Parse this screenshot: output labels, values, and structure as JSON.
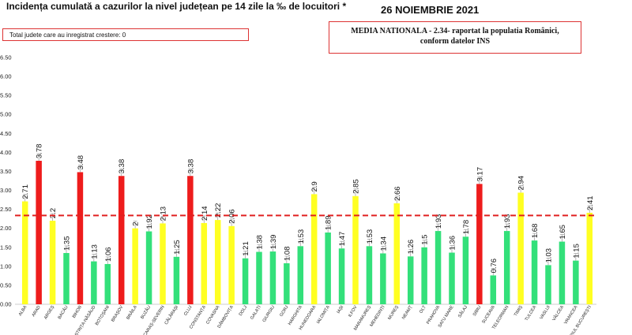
{
  "header": {
    "title": "Incidența cumulată a cazurilor la nivel județean pe 14 zile la ‰ de locuitori *",
    "date": "26 NOIEMBRIE 2021",
    "box_left": "Total judete care au inregistrat crestere: 0",
    "box_right_line1": "MEDIA NATIONALA - 2.34-  raportat la populatia Romȃnici,",
    "box_right_line2": "conform datelor INS"
  },
  "colors": {
    "red": "#ee1c1c",
    "yellow": "#ffff22",
    "green": "#33e07a",
    "reference_line": "#e02020",
    "error_bar": "#999999"
  },
  "chart_data": {
    "type": "bar",
    "categories": [
      "ALBA",
      "ARAD",
      "ARGEȘ",
      "BACĂU",
      "BIHOR",
      "BISTRIȚA-NĂSĂUD",
      "BOTOȘANI",
      "BRAȘOV",
      "BRĂILA",
      "BUZĂU",
      "CARAȘ-SEVERIN",
      "CĂLĂRAȘI",
      "CLUJ",
      "CONSTANȚA",
      "COVASNA",
      "DÂMBOVIȚA",
      "DOLJ",
      "GALAȚI",
      "GIURGIU",
      "GORJ",
      "HARGHITA",
      "HUNEDOARA",
      "IALOMIȚA",
      "IAȘI",
      "ILFOV",
      "MARAMUREȘ",
      "MEHEDINȚI",
      "MUREȘ",
      "NEAMȚ",
      "OLT",
      "PRAHOVA",
      "SATU MARE",
      "SĂLAJ",
      "SIBIU",
      "SUCEAVA",
      "TELEORMAN",
      "TIMIȘ",
      "TULCEA",
      "VASLUI",
      "VÂLCEA",
      "VRANCEA",
      "MUNICIPIUL BUCUREȘTI"
    ],
    "values": [
      2.71,
      3.78,
      2.2,
      1.35,
      3.48,
      1.13,
      1.06,
      3.38,
      2,
      1.92,
      2.13,
      1.25,
      3.38,
      2.14,
      2.22,
      2.06,
      1.21,
      1.38,
      1.39,
      1.08,
      1.53,
      2.9,
      1.89,
      1.47,
      2.85,
      1.53,
      1.34,
      2.66,
      1.26,
      1.5,
      1.93,
      1.36,
      1.78,
      3.17,
      0.76,
      1.93,
      2.94,
      1.68,
      1.03,
      1.65,
      1.15,
      2.41
    ],
    "value_labels": [
      "2.71",
      "3.78",
      "2.2",
      "1.35",
      "3.48",
      "1.13",
      "1.06",
      "3.38",
      "2",
      "1.92",
      "2.13",
      "1.25",
      "3.38",
      "2.14",
      "2.22",
      "2.06",
      "1.21",
      "1.38",
      "1.39",
      "1.08",
      "1.53",
      "2.9",
      "1.89",
      "1.47",
      "2.85",
      "1.53",
      "1.34",
      "2.66",
      "1.26",
      "1.5",
      "1.93",
      "1.36",
      "1.78",
      "3.17",
      "0.76",
      "1.93",
      "2.94",
      "1.68",
      "1.03",
      "1.65",
      "1.15",
      "2.41"
    ],
    "bar_colors": [
      "yellow",
      "red",
      "yellow",
      "green",
      "red",
      "green",
      "green",
      "red",
      "yellow",
      "green",
      "yellow",
      "green",
      "red",
      "yellow",
      "yellow",
      "yellow",
      "green",
      "green",
      "green",
      "green",
      "green",
      "yellow",
      "green",
      "green",
      "yellow",
      "green",
      "green",
      "yellow",
      "green",
      "green",
      "green",
      "green",
      "green",
      "red",
      "green",
      "green",
      "yellow",
      "green",
      "green",
      "green",
      "green",
      "yellow"
    ],
    "reference_value": 2.34,
    "ylim": [
      0,
      6.5
    ],
    "yticks": [
      "0.00",
      "0.50",
      "1.00",
      "1.50",
      "2.00",
      "2.50",
      "3.00",
      "3.50",
      "4.00",
      "4.50",
      "5.00",
      "5.50",
      "6.00",
      "6.50"
    ],
    "ytick_values": [
      0,
      0.5,
      1,
      1.5,
      2,
      2.5,
      3,
      3.5,
      4,
      4.5,
      5,
      5.5,
      6,
      6.5
    ],
    "grid": false,
    "legend": "none"
  }
}
